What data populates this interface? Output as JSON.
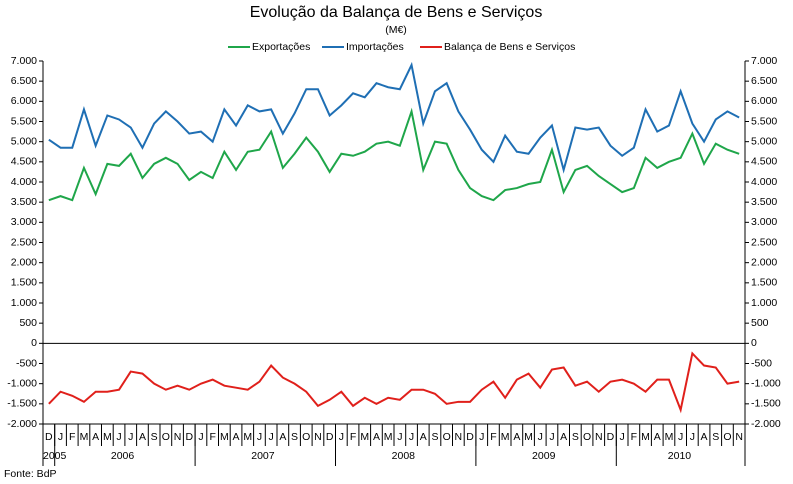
{
  "chart_data": {
    "type": "line",
    "title": "Evolução da Balança de Bens e Serviços",
    "subtitle": "(M€)",
    "source": "Fonte: BdP",
    "categories": [
      "D",
      "J",
      "F",
      "M",
      "A",
      "M",
      "J",
      "J",
      "A",
      "S",
      "O",
      "N",
      "D",
      "J",
      "F",
      "M",
      "A",
      "M",
      "J",
      "J",
      "A",
      "S",
      "O",
      "N",
      "D",
      "J",
      "F",
      "M",
      "A",
      "M",
      "J",
      "J",
      "A",
      "S",
      "O",
      "N",
      "D",
      "J",
      "F",
      "M",
      "A",
      "M",
      "J",
      "J",
      "A",
      "S",
      "O",
      "N",
      "D",
      "J",
      "F",
      "M",
      "A",
      "M",
      "J",
      "J",
      "A",
      "S",
      "O",
      "N"
    ],
    "years": [
      "2005",
      "2006",
      "2007",
      "2008",
      "2009",
      "2010"
    ],
    "series": [
      {
        "name": "Exportações",
        "color": "#1fa64a",
        "values": [
          3550,
          3650,
          3550,
          4350,
          3700,
          4450,
          4400,
          4700,
          4100,
          4450,
          4600,
          4450,
          4050,
          4250,
          4100,
          4750,
          4300,
          4750,
          4800,
          5250,
          4350,
          4700,
          5100,
          4750,
          4250,
          4700,
          4650,
          4750,
          4950,
          5000,
          4900,
          5750,
          4300,
          5000,
          4950,
          4300,
          3850,
          3650,
          3550,
          3800,
          3850,
          3950,
          4000,
          4800,
          3750,
          4300,
          4400,
          4150,
          3950,
          3750,
          3850,
          4600,
          4350,
          4500,
          4600,
          5200,
          4450,
          4950,
          4800,
          4700
        ]
      },
      {
        "name": "Importações",
        "color": "#1f6fb4",
        "values": [
          5050,
          4850,
          4850,
          5800,
          4900,
          5650,
          5550,
          5350,
          4850,
          5450,
          5750,
          5500,
          5200,
          5250,
          5000,
          5800,
          5400,
          5900,
          5750,
          5800,
          5200,
          5700,
          6300,
          6300,
          5650,
          5900,
          6200,
          6100,
          6450,
          6350,
          6300,
          6900,
          5450,
          6250,
          6450,
          5750,
          5300,
          4800,
          4500,
          5150,
          4750,
          4700,
          5100,
          5400,
          4300,
          5350,
          5300,
          5350,
          4900,
          4650,
          4850,
          5800,
          5250,
          5400,
          6250,
          5450,
          5000,
          5550,
          5750,
          5600
        ]
      },
      {
        "name": "Balança de Bens e Serviços",
        "color": "#e0201b",
        "values": [
          -1500,
          -1200,
          -1300,
          -1450,
          -1200,
          -1200,
          -1150,
          -700,
          -750,
          -1000,
          -1150,
          -1050,
          -1150,
          -1000,
          -900,
          -1050,
          -1100,
          -1150,
          -950,
          -550,
          -850,
          -1000,
          -1200,
          -1550,
          -1400,
          -1200,
          -1550,
          -1350,
          -1500,
          -1350,
          -1400,
          -1150,
          -1150,
          -1250,
          -1500,
          -1450,
          -1450,
          -1150,
          -950,
          -1350,
          -900,
          -750,
          -1100,
          -650,
          -600,
          -1050,
          -950,
          -1200,
          -950,
          -900,
          -1000,
          -1200,
          -900,
          -900,
          -1650,
          -250,
          -550,
          -600,
          -1000,
          -950
        ]
      }
    ],
    "ylim": [
      -2000,
      7000
    ],
    "yticks": [
      {
        "value": -2000,
        "label": "-2.000"
      },
      {
        "value": -1500,
        "label": "-1.500"
      },
      {
        "value": -1000,
        "label": "-1.000"
      },
      -500,
      0,
      500,
      {
        "value": 1000,
        "label": "1.000"
      },
      {
        "value": 1500,
        "label": "1.500"
      },
      {
        "value": 2000,
        "label": "2.000"
      },
      {
        "value": 2500,
        "label": "2.500"
      },
      {
        "value": 3000,
        "label": "3.000"
      },
      {
        "value": 3500,
        "label": "3.500"
      },
      {
        "value": 4000,
        "label": "4.000"
      },
      {
        "value": 4500,
        "label": "4.500"
      },
      {
        "value": 5000,
        "label": "5.000"
      },
      {
        "value": 5500,
        "label": "5.500"
      },
      {
        "value": 6000,
        "label": "6.000"
      },
      {
        "value": 6500,
        "label": "6.500"
      },
      {
        "value": 7000,
        "label": "7.000"
      }
    ],
    "right_axis": true,
    "grid": false,
    "legend": "top"
  }
}
